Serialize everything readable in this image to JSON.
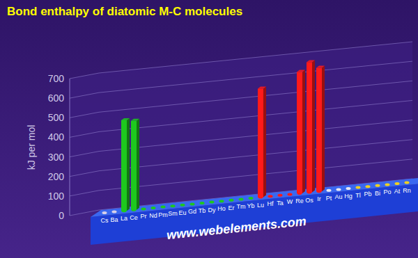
{
  "chart_data": {
    "type": "bar",
    "title": "Bond enthalpy of diatomic M-C molecules",
    "y_label": "kJ per mol",
    "annotation": "www.webelements.com",
    "categories": [
      "Cs",
      "Ba",
      "La",
      "Ce",
      "Pr",
      "Nd",
      "Pm",
      "Sm",
      "Eu",
      "Gd",
      "Tb",
      "Dy",
      "Ho",
      "Er",
      "Tm",
      "Yb",
      "Lu",
      "Hf",
      "Ta",
      "W",
      "Re",
      "Os",
      "Ir",
      "Pt",
      "Au",
      "Hg",
      "Tl",
      "Pb",
      "Bi",
      "Po",
      "At",
      "Rn"
    ],
    "values": [
      null,
      null,
      463,
      455,
      null,
      null,
      null,
      null,
      null,
      null,
      null,
      null,
      null,
      null,
      null,
      null,
      555,
      null,
      null,
      null,
      620,
      665,
      631,
      null,
      null,
      null,
      null,
      null,
      null,
      null,
      null,
      null
    ],
    "colors": [
      "#d8d0e8",
      "#d8d0e8",
      "#1ec81e",
      "#1ec81e",
      "#1ec81e",
      "#1ec81e",
      "#1ec81e",
      "#1ec81e",
      "#1ec81e",
      "#1ec81e",
      "#1ec81e",
      "#1ec81e",
      "#1ec81e",
      "#1ec81e",
      "#1ec81e",
      "#1ec81e",
      "#ff1a1a",
      "#ff1a1a",
      "#ff1a1a",
      "#ff1a1a",
      "#ff1a1a",
      "#ff1a1a",
      "#ff1a1a",
      "#e8e8f0",
      "#e8e8f0",
      "#e8e8f0",
      "#f0d020",
      "#f0d020",
      "#f0d020",
      "#f0d020",
      "#f0d020",
      "#f0d020"
    ],
    "ylim": [
      0,
      700
    ],
    "yticks": [
      0,
      100,
      200,
      300,
      400,
      500,
      600,
      700
    ],
    "grid": true
  }
}
